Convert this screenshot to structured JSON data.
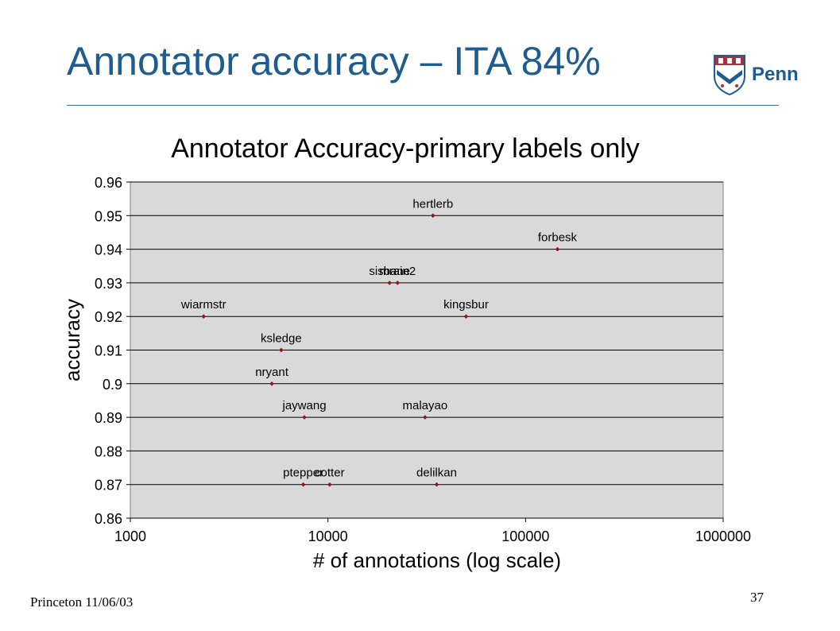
{
  "slide": {
    "title": "Annotator accuracy – ITA 84%",
    "logo_text": "Penn",
    "footer_left": "Princeton 11/06/03",
    "page_number": "37"
  },
  "chart_data": {
    "type": "scatter",
    "title": "Annotator Accuracy-primary labels only",
    "xlabel": "# of annotations (log scale)",
    "ylabel": "accuracy",
    "x_scale": "log",
    "xlim": [
      1000,
      1000000
    ],
    "ylim": [
      0.86,
      0.96
    ],
    "x_ticks": [
      "1000",
      "10000",
      "100000",
      "1000000"
    ],
    "y_ticks": [
      "0.96",
      "0.95",
      "0.94",
      "0.93",
      "0.92",
      "0.91",
      "0.9",
      "0.89",
      "0.88",
      "0.87",
      "0.86"
    ],
    "grid": "horizontal",
    "plot_background": "#d9d9d9",
    "marker_color": "#8b1a1a",
    "points": [
      {
        "label": "hertlerb",
        "x": 34000,
        "y": 0.95
      },
      {
        "label": "forbesk",
        "x": 145000,
        "y": 0.94
      },
      {
        "label": "sisbane",
        "x": 20500,
        "y": 0.93
      },
      {
        "label": "mrain2",
        "x": 22500,
        "y": 0.93
      },
      {
        "label": "wiarmstr",
        "x": 2350,
        "y": 0.92
      },
      {
        "label": "kingsbur",
        "x": 50000,
        "y": 0.92
      },
      {
        "label": "ksledge",
        "x": 5800,
        "y": 0.91
      },
      {
        "label": "nryant",
        "x": 5200,
        "y": 0.9
      },
      {
        "label": "jaywang",
        "x": 7600,
        "y": 0.89
      },
      {
        "label": "malayao",
        "x": 31000,
        "y": 0.89
      },
      {
        "label": "ptepper",
        "x": 7500,
        "y": 0.87
      },
      {
        "label": "cotter",
        "x": 10200,
        "y": 0.87
      },
      {
        "label": "delilkan",
        "x": 35500,
        "y": 0.87
      }
    ]
  }
}
